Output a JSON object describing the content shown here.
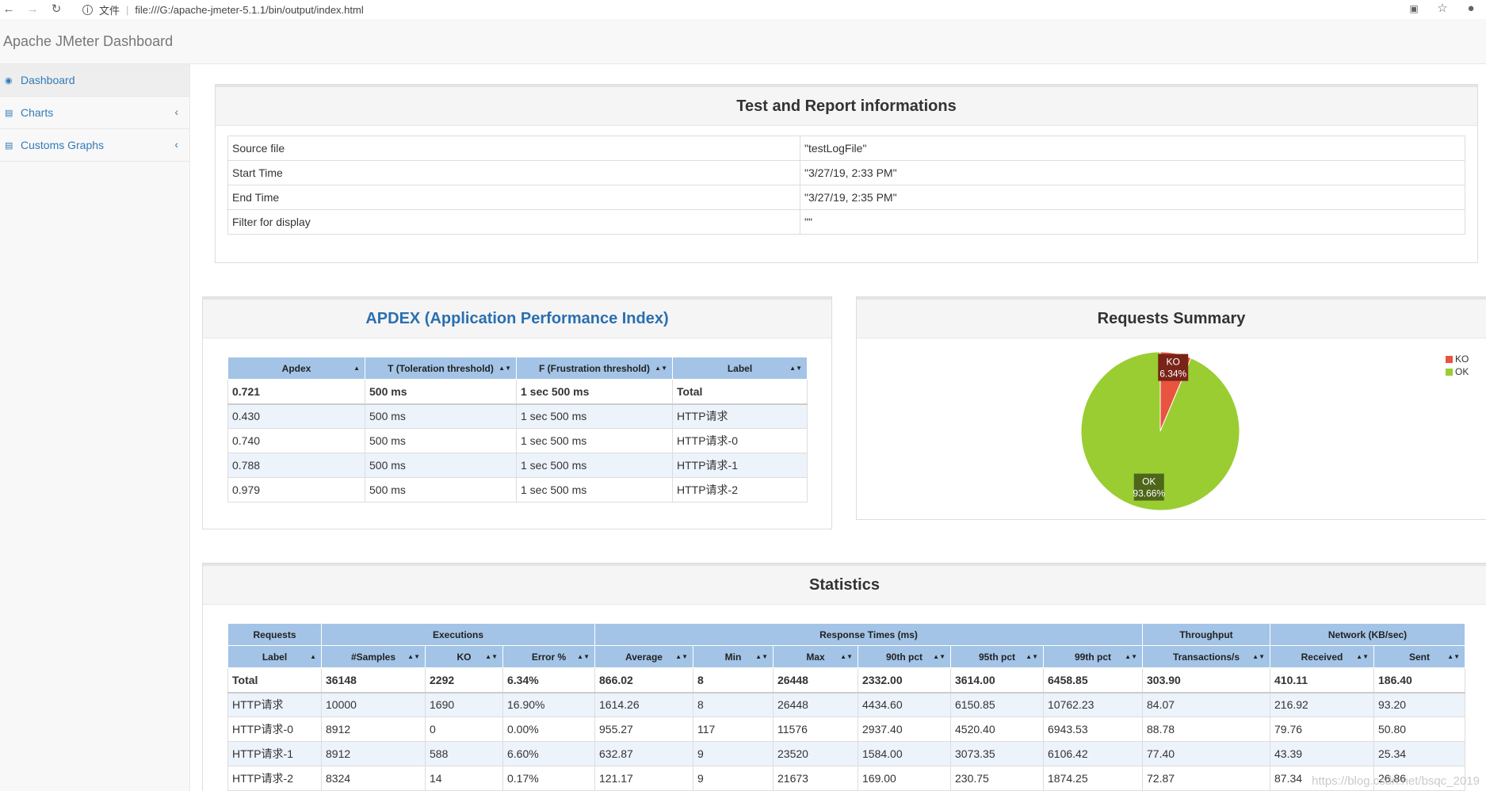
{
  "browser": {
    "file_label": "文件",
    "url": "file:///G:/apache-jmeter-5.1.1/bin/output/index.html"
  },
  "app": {
    "title": "Apache JMeter Dashboard"
  },
  "sidebar": {
    "items": [
      {
        "label": "Dashboard",
        "icon": "dashboard-icon",
        "active": true
      },
      {
        "label": "Charts",
        "icon": "bar-chart-icon"
      },
      {
        "label": "Customs Graphs",
        "icon": "bar-chart-icon"
      }
    ]
  },
  "info": {
    "title": "Test and Report informations",
    "rows": [
      {
        "label": "Source file",
        "value": "\"testLogFile\""
      },
      {
        "label": "Start Time",
        "value": "\"3/27/19, 2:33 PM\""
      },
      {
        "label": "End Time",
        "value": "\"3/27/19, 2:35 PM\""
      },
      {
        "label": "Filter for display",
        "value": "\"\""
      }
    ]
  },
  "apdex": {
    "title": "APDEX (Application Performance Index)",
    "headers": [
      "Apdex",
      "T (Toleration threshold)",
      "F (Frustration threshold)",
      "Label"
    ],
    "rows": [
      [
        "0.721",
        "500 ms",
        "1 sec 500 ms",
        "Total"
      ],
      [
        "0.430",
        "500 ms",
        "1 sec 500 ms",
        "HTTP请求"
      ],
      [
        "0.740",
        "500 ms",
        "1 sec 500 ms",
        "HTTP请求-0"
      ],
      [
        "0.788",
        "500 ms",
        "1 sec 500 ms",
        "HTTP请求-1"
      ],
      [
        "0.979",
        "500 ms",
        "1 sec 500 ms",
        "HTTP请求-2"
      ]
    ]
  },
  "summary": {
    "title": "Requests Summary",
    "legend": [
      {
        "name": "KO",
        "color": "#e8543f"
      },
      {
        "name": "OK",
        "color": "#9acd32"
      }
    ]
  },
  "chart_data": {
    "type": "pie",
    "title": "Requests Summary",
    "slices": [
      {
        "name": "KO",
        "value": 6.34,
        "label": "6.34%",
        "color": "#e8543f"
      },
      {
        "name": "OK",
        "value": 93.66,
        "label": "93.66%",
        "color": "#9acd32"
      }
    ]
  },
  "statistics": {
    "title": "Statistics",
    "groups": [
      "Requests",
      "Executions",
      "Response Times (ms)",
      "Throughput",
      "Network (KB/sec)"
    ],
    "headers": [
      "Label",
      "#Samples",
      "KO",
      "Error %",
      "Average",
      "Min",
      "Max",
      "90th pct",
      "95th pct",
      "99th pct",
      "Transactions/s",
      "Received",
      "Sent"
    ],
    "rows": [
      [
        "Total",
        "36148",
        "2292",
        "6.34%",
        "866.02",
        "8",
        "26448",
        "2332.00",
        "3614.00",
        "6458.85",
        "303.90",
        "410.11",
        "186.40"
      ],
      [
        "HTTP请求",
        "10000",
        "1690",
        "16.90%",
        "1614.26",
        "8",
        "26448",
        "4434.60",
        "6150.85",
        "10762.23",
        "84.07",
        "216.92",
        "93.20"
      ],
      [
        "HTTP请求-0",
        "8912",
        "0",
        "0.00%",
        "955.27",
        "117",
        "11576",
        "2937.40",
        "4520.40",
        "6943.53",
        "88.78",
        "79.76",
        "50.80"
      ],
      [
        "HTTP请求-1",
        "8912",
        "588",
        "6.60%",
        "632.87",
        "9",
        "23520",
        "1584.00",
        "3073.35",
        "6106.42",
        "77.40",
        "43.39",
        "25.34"
      ],
      [
        "HTTP请求-2",
        "8324",
        "14",
        "0.17%",
        "121.17",
        "9",
        "21673",
        "169.00",
        "230.75",
        "1874.25",
        "72.87",
        "87.34",
        "26.86"
      ]
    ]
  },
  "watermark": "https://blog.csdn.net/bsqc_2019"
}
